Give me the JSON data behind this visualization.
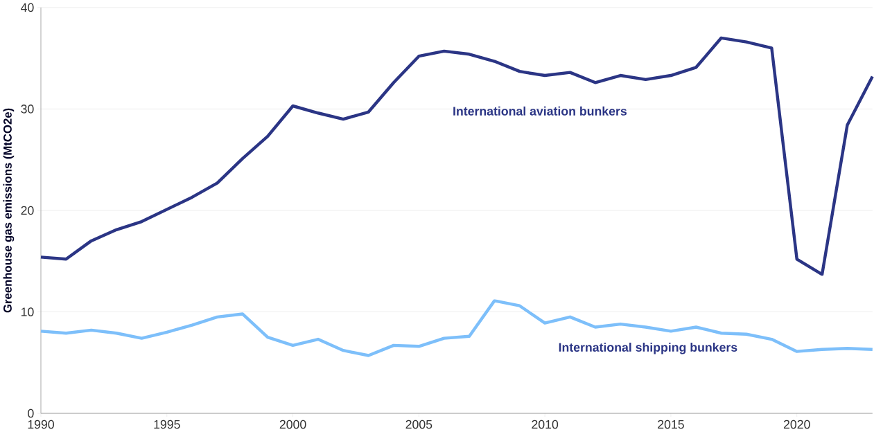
{
  "chart_data": {
    "type": "line",
    "ylabel": "Greenhouse gas emissions (MtCO2e)",
    "x": [
      1990,
      1991,
      1992,
      1993,
      1994,
      1995,
      1996,
      1997,
      1998,
      1999,
      2000,
      2001,
      2002,
      2003,
      2004,
      2005,
      2006,
      2007,
      2008,
      2009,
      2010,
      2011,
      2012,
      2013,
      2014,
      2015,
      2016,
      2017,
      2018,
      2019,
      2020,
      2021,
      2022,
      2023
    ],
    "series": [
      {
        "name": "International aviation bunkers",
        "color": "#2b3585",
        "values": [
          15.4,
          15.2,
          17.0,
          18.1,
          18.9,
          20.1,
          21.3,
          22.7,
          25.1,
          27.3,
          30.3,
          29.6,
          29.0,
          29.7,
          32.6,
          35.2,
          35.7,
          35.4,
          34.7,
          33.7,
          33.3,
          33.6,
          32.6,
          33.3,
          32.9,
          33.3,
          34.1,
          37.0,
          36.6,
          36.0,
          15.2,
          13.7,
          28.4,
          33.2
        ]
      },
      {
        "name": "International shipping bunkers",
        "color": "#7dbffa",
        "values": [
          8.1,
          7.9,
          8.2,
          7.9,
          7.4,
          8.0,
          8.7,
          9.5,
          9.8,
          7.5,
          6.7,
          7.3,
          6.2,
          5.7,
          6.7,
          6.6,
          7.4,
          7.6,
          11.1,
          10.6,
          8.9,
          9.5,
          8.5,
          8.8,
          8.5,
          8.1,
          8.5,
          7.9,
          7.8,
          7.3,
          6.1,
          6.3,
          6.4,
          6.3
        ]
      }
    ],
    "xlim": [
      1990,
      2023
    ],
    "xticks": [
      1990,
      1995,
      2000,
      2005,
      2010,
      2015,
      2020
    ],
    "ylim": [
      0,
      40
    ],
    "yticks": [
      0,
      10,
      20,
      30,
      40
    ],
    "grid": "y",
    "marker": "none",
    "line_style": "solid"
  }
}
